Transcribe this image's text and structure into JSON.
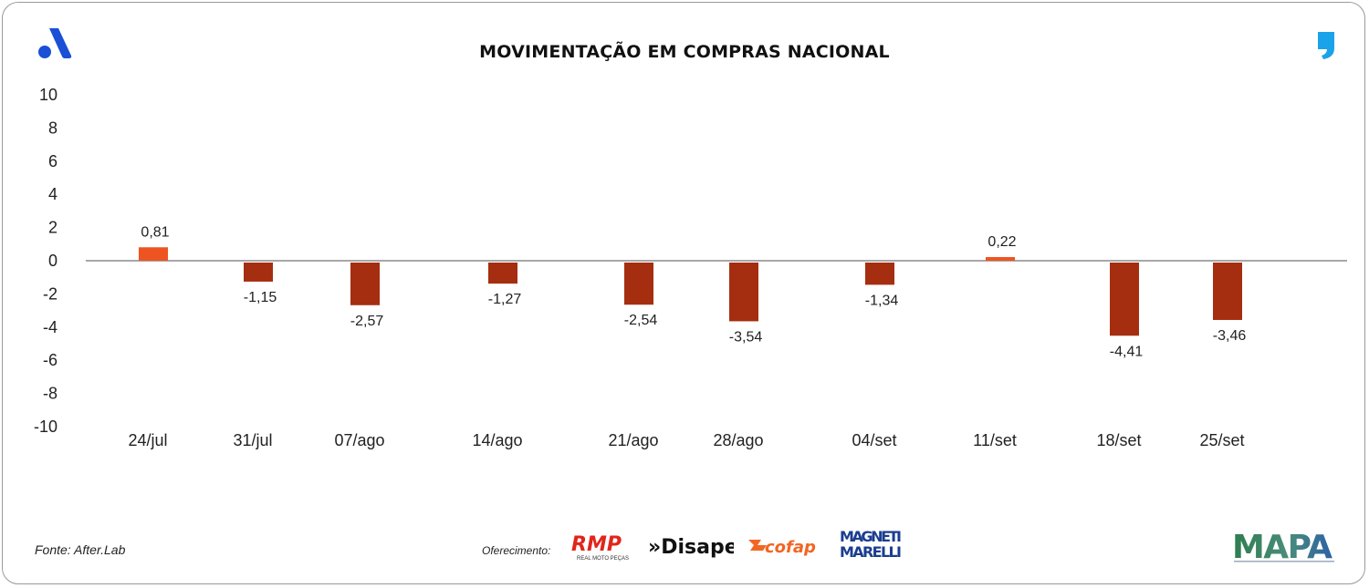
{
  "header": {
    "title": "MOVIMENTAÇÃO EM COMPRAS NACIONAL"
  },
  "footer": {
    "source": "Fonte: After.Lab",
    "sponsor_label": "Oferecimento:",
    "sponsors": [
      "RMP",
      "REAL MOTO PEÇAS",
      "»Disape",
      "cofap",
      "MAGNETI",
      "MARELLI"
    ],
    "mapa": "MAPA"
  },
  "colors": {
    "positive": "#EE5422",
    "negative": "#A52E10",
    "axis": "#8a8a8a",
    "brand_blue": "#1A4FD6",
    "quote_blue": "#1AA3E8"
  },
  "icons": [
    "brand-logo-icon",
    "quote-icon"
  ],
  "chart_data": {
    "type": "bar",
    "title": "MOVIMENTAÇÃO EM COMPRAS NACIONAL",
    "xlabel": "",
    "ylabel": "",
    "ylim": [
      -10,
      10
    ],
    "yticks": [
      "10",
      "8",
      "6",
      "4",
      "2",
      "0",
      "-2",
      "-4",
      "-6",
      "-8",
      "-10"
    ],
    "categories": [
      "24/jul",
      "31/jul",
      "07/ago",
      "14/ago",
      "21/ago",
      "28/ago",
      "04/set",
      "11/set",
      "18/set",
      "25/set"
    ],
    "values": [
      0.81,
      -1.15,
      -2.57,
      -1.27,
      -2.54,
      -3.54,
      -1.34,
      0.22,
      -4.41,
      -3.46
    ],
    "value_labels": [
      "0,81",
      "-1,15",
      "-2,57",
      "-1,27",
      "-2,54",
      "-3,54",
      "-1,34",
      "0,22",
      "-4,41",
      "-3,46"
    ],
    "grid": false,
    "legend": "none"
  }
}
